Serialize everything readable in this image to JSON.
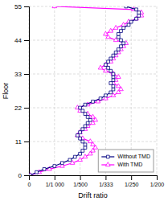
{
  "chart_data": {
    "type": "line",
    "xlabel": "Drift ratio",
    "ylabel": "Floor",
    "y": [
      0,
      1,
      2,
      3,
      4,
      5,
      6,
      7,
      8,
      9,
      10,
      11,
      12,
      13,
      14,
      15,
      16,
      17,
      18,
      19,
      20,
      21,
      22,
      23,
      24,
      25,
      26,
      27,
      28,
      29,
      30,
      31,
      32,
      33,
      34,
      35,
      36,
      37,
      38,
      39,
      40,
      41,
      42,
      43,
      44,
      45,
      46,
      47,
      48,
      49,
      50,
      51,
      52,
      53,
      54,
      55
    ],
    "series": [
      {
        "name": "Without TMD",
        "color": "#000080",
        "marker": "square",
        "values": [
          5e-05,
          0.0003,
          0.0006,
          0.001,
          0.0013,
          0.0016,
          0.0018,
          0.002,
          0.0021,
          0.0022,
          0.0022,
          0.0021,
          0.002,
          0.0019,
          0.002,
          0.0021,
          0.0022,
          0.0023,
          0.0024,
          0.0023,
          0.0022,
          0.0021,
          0.002,
          0.0022,
          0.0025,
          0.0028,
          0.003,
          0.0032,
          0.0033,
          0.0033,
          0.0032,
          0.0033,
          0.0033,
          0.0033,
          0.0032,
          0.0031,
          0.003,
          0.0031,
          0.0032,
          0.0033,
          0.0034,
          0.0035,
          0.0036,
          0.0037,
          0.0036,
          0.0035,
          0.0035,
          0.0036,
          0.0037,
          0.0039,
          0.004,
          0.0042,
          0.0043,
          0.0043,
          0.0042,
          0.0038
        ]
      },
      {
        "name": "With TMD",
        "color": "#ff00ff",
        "marker": "triangle",
        "values": [
          5e-05,
          0.0004,
          0.0008,
          0.0013,
          0.0017,
          0.002,
          0.0022,
          0.0024,
          0.0025,
          0.0026,
          0.0025,
          0.0024,
          0.0021,
          0.0019,
          0.002,
          0.0022,
          0.0023,
          0.0025,
          0.0026,
          0.0025,
          0.0023,
          0.002,
          0.0019,
          0.0023,
          0.0027,
          0.003,
          0.0033,
          0.0035,
          0.0036,
          0.0035,
          0.0033,
          0.0034,
          0.0035,
          0.0033,
          0.003,
          0.0028,
          0.003,
          0.0032,
          0.0033,
          0.0034,
          0.0035,
          0.0036,
          0.0037,
          0.0038,
          0.0034,
          0.0031,
          0.003,
          0.0032,
          0.0034,
          0.0037,
          0.0039,
          0.0042,
          0.0044,
          0.0044,
          0.0041,
          0.001
        ]
      }
    ],
    "xlim": [
      0,
      0.005
    ],
    "xticks": [
      0,
      {
        "value": 0.001,
        "label": "1/1 000"
      },
      {
        "value": 0.002,
        "label": "1/500"
      },
      {
        "value": 0.003,
        "label": "1/333"
      },
      {
        "value": 0.004,
        "label": "1/250"
      },
      {
        "value": 0.005,
        "label": "1/200"
      }
    ],
    "ylim": [
      0,
      55
    ],
    "yticks": [
      0,
      11,
      22,
      33,
      44,
      55
    ],
    "grid": true,
    "legend": "lower right"
  }
}
